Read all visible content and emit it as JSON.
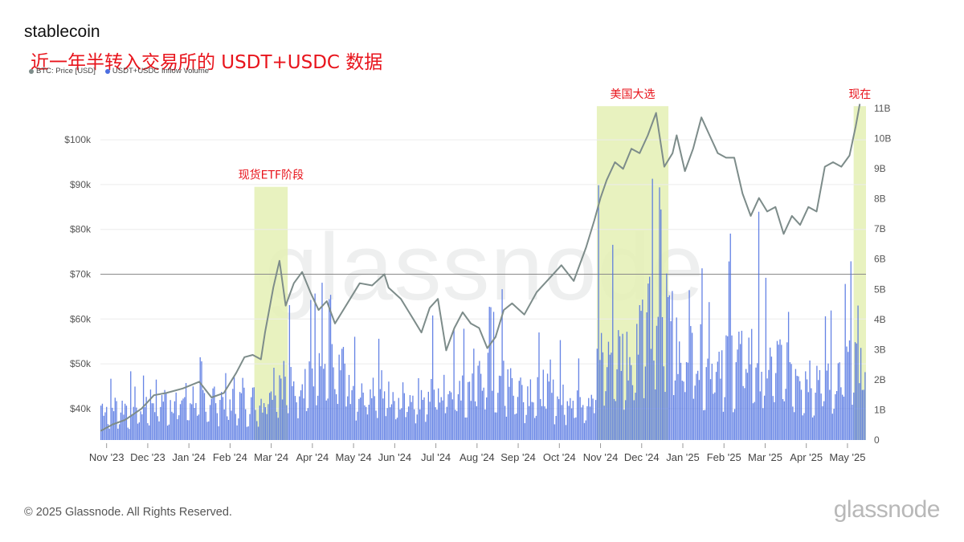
{
  "header": {
    "title": "stablecoin",
    "subtitle": "近一年半转入交易所的 USDT+USDC 数据"
  },
  "footer": {
    "copyright": "© 2025 Glassnode. All Rights Reserved.",
    "brand": "glassnode"
  },
  "watermark": "glassnode",
  "chart_data": {
    "type": "bar",
    "legend": [
      {
        "name": "BTC: Price [USD]",
        "color": "#7d8c8a"
      },
      {
        "name": "USDT+USDC Inflow Volume",
        "color": "#4b6ee0"
      }
    ],
    "x_tick_labels": [
      "Nov '23",
      "Dec '23",
      "Jan '24",
      "Feb '24",
      "Mar '24",
      "Apr '24",
      "May '24",
      "Jun '24",
      "Jul '24",
      "Aug '24",
      "Sep '24",
      "Oct '24",
      "Nov '24",
      "Dec '24",
      "Jan '25",
      "Feb '25",
      "Mar '25",
      "Apr '25",
      "May '25"
    ],
    "y_left_ticks": [
      "$40k",
      "$50k",
      "$60k",
      "$70k",
      "$80k",
      "$90k",
      "$100k"
    ],
    "y_left_values": [
      40000,
      50000,
      60000,
      70000,
      80000,
      90000,
      100000
    ],
    "y_right_ticks": [
      "0",
      "1B",
      "2B",
      "3B",
      "4B",
      "5B",
      "6B",
      "7B",
      "8B",
      "9B",
      "10B",
      "11B"
    ],
    "y_right_values": [
      0,
      1,
      2,
      3,
      4,
      5,
      6,
      7,
      8,
      9,
      10,
      11
    ],
    "ylim_left": [
      33000,
      107000
    ],
    "ylim_right_billions": [
      0,
      11
    ],
    "x_range_months": [
      0,
      18.6
    ],
    "reference_line": 70000,
    "series": [
      {
        "name": "BTC: Price [USD]",
        "color": "#7d8c8a",
        "x_months": [
          0,
          0.3,
          0.6,
          1.0,
          1.3,
          1.6,
          2.0,
          2.4,
          2.7,
          3.0,
          3.3,
          3.5,
          3.7,
          3.9,
          4.0,
          4.1,
          4.2,
          4.35,
          4.5,
          4.7,
          4.9,
          5.1,
          5.3,
          5.5,
          5.7,
          6.0,
          6.3,
          6.6,
          6.9,
          7.0,
          7.3,
          7.6,
          7.8,
          8.0,
          8.2,
          8.4,
          8.6,
          8.8,
          9.0,
          9.2,
          9.4,
          9.6,
          9.8,
          10.0,
          10.3,
          10.6,
          10.9,
          11.2,
          11.5,
          11.8,
          12.0,
          12.15,
          12.3,
          12.5,
          12.7,
          12.9,
          13.1,
          13.3,
          13.5,
          13.7,
          13.9,
          14.0,
          14.2,
          14.4,
          14.6,
          14.8,
          15.0,
          15.2,
          15.4,
          15.6,
          15.8,
          16.0,
          16.2,
          16.4,
          16.6,
          16.8,
          17.0,
          17.2,
          17.4,
          17.6,
          17.8,
          18.0,
          18.2,
          18.35,
          18.45
        ],
        "values": [
          35000,
          36500,
          37500,
          40000,
          43000,
          43500,
          44500,
          46000,
          42500,
          43500,
          48000,
          51500,
          52000,
          51000,
          57000,
          62000,
          67000,
          73000,
          63000,
          68000,
          70500,
          66000,
          62000,
          64000,
          59000,
          63500,
          68000,
          67500,
          70000,
          67000,
          64500,
          60000,
          57000,
          62500,
          64500,
          53000,
          58000,
          61500,
          59000,
          58000,
          53500,
          56000,
          62000,
          63500,
          61000,
          66000,
          69000,
          72000,
          68500,
          76000,
          82000,
          87000,
          91000,
          95000,
          93500,
          98000,
          97000,
          101000,
          106000,
          94000,
          97000,
          101000,
          93000,
          98000,
          105000,
          101000,
          97000,
          96000,
          96000,
          88000,
          83000,
          87000,
          84000,
          85000,
          79000,
          83000,
          81000,
          85000,
          84000,
          94000,
          95000,
          94000,
          96500,
          103000,
          108000
        ]
      },
      {
        "name": "USDT+USDC Inflow Volume",
        "color": "#4b6ee0",
        "value_unit": "B",
        "monthly_average": [
          1.0,
          1.2,
          1.3,
          1.2,
          1.9,
          2.2,
          1.6,
          1.4,
          1.6,
          2.1,
          1.6,
          1.4,
          2.6,
          3.9,
          2.8,
          2.6,
          2.3,
          2.0,
          2.4
        ],
        "monthly_peak": [
          2.3,
          2.5,
          2.8,
          2.6,
          4.9,
          5.4,
          3.8,
          3.6,
          4.2,
          5.3,
          3.7,
          3.8,
          9.6,
          9.2,
          6.3,
          7.7,
          5.8,
          5.0,
          6.5
        ]
      }
    ],
    "annotations": [
      {
        "label": "现货ETF阶段",
        "x_start_month": 3.74,
        "x_end_month": 4.55,
        "y_top": 89500,
        "color": "#e8141c"
      },
      {
        "label": "美国大选",
        "x_start_month": 12.06,
        "x_end_month": 13.8,
        "y_top": 107500,
        "color": "#e8141c"
      },
      {
        "label": "现在",
        "x_start_month": 18.3,
        "x_end_month": 18.6,
        "y_top": 107500,
        "color": "#e8141c"
      }
    ],
    "grid": true,
    "legend_position": "top-left"
  }
}
